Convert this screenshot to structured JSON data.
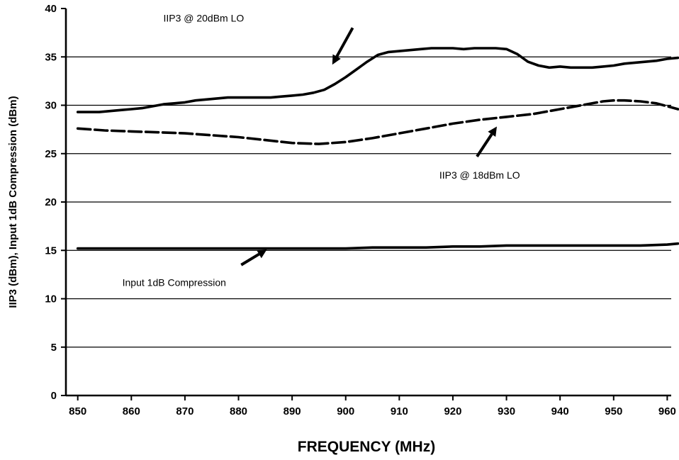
{
  "chart_data": {
    "type": "line",
    "title": "",
    "xlabel": "FREQUENCY (MHz)",
    "ylabel": "IIP3 (dBm), Input 1dB Compression (dBm)",
    "xlim": [
      850,
      960
    ],
    "ylim": [
      0,
      40
    ],
    "x_ticks": [
      850,
      860,
      870,
      880,
      890,
      900,
      910,
      920,
      930,
      940,
      950,
      960
    ],
    "y_ticks": [
      0,
      5,
      10,
      15,
      20,
      25,
      30,
      35,
      40
    ],
    "grid": "horizontal",
    "legend": "none",
    "series": [
      {
        "name": "IIP3 @ 20dBm LO",
        "style": "solid",
        "color": "#000000",
        "x": [
          850,
          854,
          856,
          858,
          860,
          862,
          864,
          866,
          868,
          870,
          872,
          874,
          876,
          878,
          880,
          882,
          884,
          886,
          888,
          890,
          892,
          894,
          896,
          898,
          900,
          902,
          904,
          906,
          908,
          910,
          912,
          914,
          916,
          918,
          920,
          922,
          924,
          926,
          928,
          930,
          932,
          934,
          936,
          938,
          940,
          942,
          944,
          946,
          948,
          950,
          952,
          954,
          956,
          958,
          960,
          962
        ],
        "y": [
          29.3,
          29.3,
          29.4,
          29.5,
          29.6,
          29.7,
          29.9,
          30.1,
          30.2,
          30.3,
          30.5,
          30.6,
          30.7,
          30.8,
          30.8,
          30.8,
          30.8,
          30.8,
          30.9,
          31.0,
          31.1,
          31.3,
          31.6,
          32.2,
          32.9,
          33.7,
          34.5,
          35.2,
          35.5,
          35.6,
          35.7,
          35.8,
          35.9,
          35.9,
          35.9,
          35.8,
          35.9,
          35.9,
          35.9,
          35.8,
          35.3,
          34.5,
          34.1,
          33.9,
          34.0,
          33.9,
          33.9,
          33.9,
          34.0,
          34.1,
          34.3,
          34.4,
          34.5,
          34.6,
          34.8,
          34.9
        ]
      },
      {
        "name": "IIP3 @ 18dBm LO",
        "style": "dashed",
        "color": "#000000",
        "x": [
          850,
          855,
          860,
          865,
          870,
          875,
          880,
          885,
          890,
          895,
          900,
          905,
          910,
          915,
          920,
          925,
          930,
          935,
          940,
          945,
          948,
          950,
          952,
          955,
          958,
          962
        ],
        "y": [
          27.6,
          27.4,
          27.3,
          27.2,
          27.1,
          26.9,
          26.7,
          26.4,
          26.1,
          26.0,
          26.2,
          26.6,
          27.1,
          27.6,
          28.1,
          28.5,
          28.8,
          29.1,
          29.6,
          30.1,
          30.4,
          30.5,
          30.5,
          30.4,
          30.2,
          29.6
        ]
      },
      {
        "name": "Input 1dB Compression",
        "style": "solid",
        "color": "#000000",
        "x": [
          850,
          860,
          870,
          880,
          890,
          900,
          905,
          910,
          915,
          920,
          925,
          930,
          940,
          950,
          955,
          960,
          962
        ],
        "y": [
          15.2,
          15.2,
          15.2,
          15.2,
          15.2,
          15.2,
          15.3,
          15.3,
          15.3,
          15.4,
          15.4,
          15.5,
          15.5,
          15.5,
          15.5,
          15.6,
          15.7
        ]
      }
    ],
    "annotations": [
      {
        "text": "IIP3 @ 20dBm LO",
        "series": 0,
        "arrow_from": [
          901.3,
          38.0
        ],
        "arrow_to": [
          897.5,
          34.2
        ],
        "label_at": [
          873.5,
          39.0
        ]
      },
      {
        "text": "IIP3 @ 18dBm LO",
        "series": 1,
        "arrow_from": [
          924.5,
          24.7
        ],
        "arrow_to": [
          928.2,
          27.8
        ],
        "label_at": [
          925.0,
          22.8
        ]
      },
      {
        "text": "Input 1dB Compression",
        "series": 2,
        "arrow_from": [
          880.5,
          13.5
        ],
        "arrow_to": [
          885.3,
          15.1
        ],
        "label_at": [
          868.0,
          11.7
        ]
      }
    ]
  }
}
